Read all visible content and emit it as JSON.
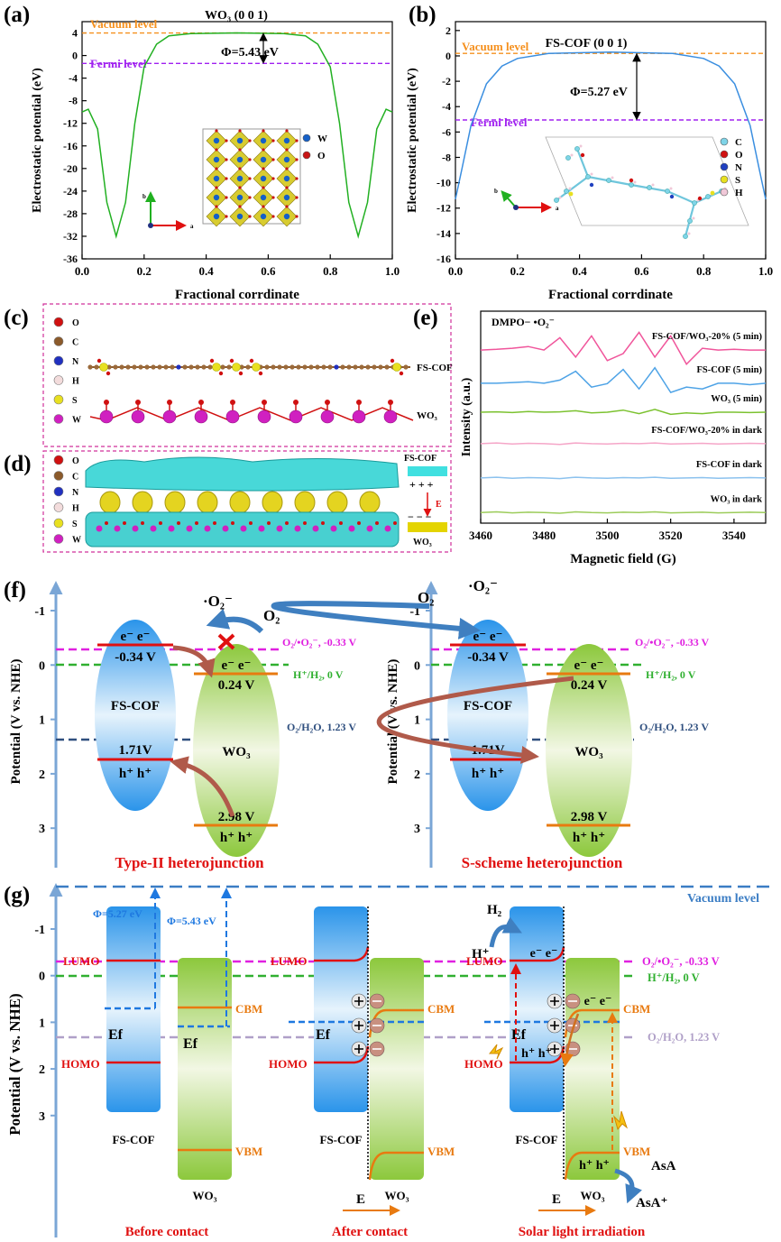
{
  "panel_labels": [
    "(a)",
    "(b)",
    "(c)",
    "(d)",
    "(e)",
    "(f)",
    "(g)"
  ],
  "chart_data": [
    {
      "type": "line",
      "title": "WO₃ (0 0 1)",
      "annotations": [
        "Φ=5.43 eV"
      ],
      "x_label": "Fractional corrdinate",
      "y_label": "Electrostatic potential (eV)",
      "x": [
        0,
        0.02,
        0.05,
        0.08,
        0.11,
        0.14,
        0.17,
        0.2,
        0.24,
        0.28,
        0.35,
        0.5,
        0.65,
        0.72,
        0.76,
        0.8,
        0.83,
        0.86,
        0.89,
        0.92,
        0.95,
        0.98,
        1.0
      ],
      "series": [
        {
          "color": "#22b022",
          "values": [
            -10,
            -9.5,
            -13,
            -26,
            -32,
            -26,
            -12,
            -2,
            2,
            3.5,
            3.9,
            4,
            3.9,
            3.5,
            2,
            -2,
            -12,
            -26,
            -32,
            -26,
            -13,
            -9.5,
            -10
          ]
        }
      ],
      "reference_lines": [
        {
          "label": "Vacuum level",
          "value": 4,
          "color": "#f5901e"
        },
        {
          "label": "Fermi level",
          "value": -1.4,
          "color": "#a020f0"
        }
      ],
      "xlim": [
        0,
        1
      ],
      "ylim": [
        -36,
        6
      ],
      "xticks": [
        {
          "value": 0,
          "label": "0.0"
        },
        0.2,
        0.4,
        0.6,
        0.8,
        {
          "value": 1,
          "label": "1.0"
        }
      ],
      "yticks": [
        4,
        0,
        -4,
        -8,
        -12,
        -16,
        -20,
        -24,
        -28,
        -32,
        -36
      ],
      "inset_legend": [
        "W",
        "O"
      ],
      "inset_axes": [
        "b",
        "a"
      ]
    },
    {
      "type": "line",
      "title": "FS-COF (0 0 1)",
      "annotations": [
        "Φ=5.27 eV"
      ],
      "x_label": "Fractional corrdinate",
      "y_label": "Electrostatic potential (eV)",
      "x": [
        0,
        0.02,
        0.05,
        0.1,
        0.15,
        0.2,
        0.3,
        0.5,
        0.7,
        0.8,
        0.85,
        0.9,
        0.95,
        0.98,
        1.0
      ],
      "series": [
        {
          "color": "#3a8ee0",
          "values": [
            -11.3,
            -9,
            -5.5,
            -2.2,
            -0.8,
            -0.2,
            0.2,
            0.3,
            0.2,
            -0.2,
            -0.8,
            -2.2,
            -5.5,
            -9,
            -11.3
          ]
        }
      ],
      "reference_lines": [
        {
          "label": "Vacuum level",
          "value": 0.2,
          "color": "#f5901e"
        },
        {
          "label": "Fermi level",
          "value": -5.05,
          "color": "#a020f0"
        }
      ],
      "xlim": [
        0,
        1
      ],
      "ylim": [
        -16,
        2.7
      ],
      "xticks": [
        {
          "value": 0,
          "label": "0.0"
        },
        0.2,
        0.4,
        0.6,
        0.8,
        {
          "value": 1,
          "label": "1.0"
        }
      ],
      "yticks": [
        2,
        0,
        -2,
        -4,
        -6,
        -8,
        -10,
        -12,
        -14,
        -16
      ],
      "inset_legend": [
        "C",
        "O",
        "N",
        "S",
        "H"
      ],
      "inset_axes": [
        "b",
        "a"
      ]
    },
    {
      "type": "line",
      "annotations": [
        "DMPO− •O₂⁻"
      ],
      "x_label": "Magnetic field (G)",
      "y_label": "Intensity (a.u.)",
      "x": [
        3460,
        3465,
        3470,
        3475,
        3480,
        3485,
        3490,
        3495,
        3500,
        3505,
        3510,
        3515,
        3520,
        3525,
        3530,
        3535,
        3540,
        3545,
        3550
      ],
      "series": [
        {
          "name": "FS-COF/WO₃-20% (5 min)",
          "color": "#f0559b",
          "values": [
            4.9,
            4.92,
            4.95,
            5.0,
            4.9,
            5.25,
            4.7,
            5.3,
            4.6,
            4.8,
            5.4,
            4.7,
            5.3,
            4.5,
            4.95,
            4.9,
            4.92,
            4.9,
            4.9
          ]
        },
        {
          "name": "FS-COF (5 min)",
          "color": "#4ea3e6",
          "values": [
            3.96,
            3.96,
            3.98,
            4.0,
            3.96,
            4.05,
            4.3,
            3.85,
            3.95,
            4.35,
            3.8,
            4.4,
            3.7,
            3.85,
            3.8,
            3.96,
            3.96,
            3.92,
            3.96
          ]
        },
        {
          "name": "WO₃ (5 min)",
          "color": "#7cc230",
          "values": [
            3.14,
            3.15,
            3.13,
            3.16,
            3.14,
            3.15,
            3.18,
            3.12,
            3.14,
            3.2,
            3.1,
            3.22,
            3.08,
            3.12,
            3.1,
            3.14,
            3.14,
            3.13,
            3.14
          ]
        },
        {
          "name": "FS-COF/WO₃-20% in dark",
          "color": "#f5a6c8",
          "values": [
            2.25,
            2.27,
            2.24,
            2.26,
            2.25,
            2.23,
            2.27,
            2.25,
            2.24,
            2.26,
            2.25,
            2.27,
            2.24,
            2.25,
            2.26,
            2.24,
            2.25,
            2.26,
            2.25
          ]
        },
        {
          "name": "FS-COF in dark",
          "color": "#8cc2ee",
          "values": [
            1.28,
            1.3,
            1.27,
            1.29,
            1.28,
            1.26,
            1.3,
            1.28,
            1.27,
            1.29,
            1.28,
            1.3,
            1.27,
            1.28,
            1.29,
            1.27,
            1.28,
            1.29,
            1.28
          ]
        },
        {
          "name": "WO₃ in dark",
          "color": "#9ccc5a",
          "values": [
            0.3,
            0.32,
            0.29,
            0.31,
            0.3,
            0.28,
            0.32,
            0.3,
            0.29,
            0.31,
            0.3,
            0.32,
            0.29,
            0.3,
            0.31,
            0.29,
            0.3,
            0.31,
            0.3
          ]
        }
      ],
      "xlim": [
        3460,
        3550
      ],
      "ylim": [
        0,
        6
      ],
      "xticks": [
        3460,
        3480,
        3500,
        3520,
        3540
      ]
    }
  ],
  "panel_c": {
    "legend": [
      "O",
      "C",
      "N",
      "H",
      "S",
      "W"
    ],
    "labels": [
      "FS-COF",
      "WO₃"
    ]
  },
  "panel_d": {
    "legend": [
      "O",
      "C",
      "N",
      "H",
      "S",
      "W"
    ],
    "labels": [
      "FS-COF",
      "+ + +",
      "E",
      "−  −  −",
      "WO₃"
    ]
  },
  "panel_f": {
    "y_label": "Potential (V vs. NHE)",
    "yticks": [
      "-1",
      "0",
      "1",
      "2",
      "3"
    ],
    "redox": [
      "O₂/•O₂⁻, -0.33 V",
      "H⁺/H₂, 0 V",
      "O₂/H₂O, 1.23 V"
    ],
    "diagrams": [
      {
        "caption": "Type-II heterojunction",
        "cof": "FS-COF",
        "wo3": "WO₃",
        "cof_cb": "-0.34 V",
        "cof_vb": "1.71V",
        "wo3_cb": "0.24 V",
        "wo3_vb": "2.98 V",
        "electrons": "e⁻ e⁻",
        "holes": "h⁺ h⁺",
        "o2": "O₂",
        "superoxide": "·O₂⁻"
      },
      {
        "caption": "S-scheme heterojunction",
        "cof": "FS-COF",
        "wo3": "WO₃",
        "cof_cb": "-0.34 V",
        "cof_vb": "1.71V",
        "wo3_cb": "0.24 V",
        "wo3_vb": "2.98 V",
        "electrons": "e⁻ e⁻",
        "holes": "h⁺ h⁺",
        "o2": "O₂",
        "superoxide": "·O₂⁻"
      }
    ]
  },
  "panel_g": {
    "y_label": "Potential (V vs. NHE)",
    "yticks": [
      "-1",
      "0",
      "1",
      "2",
      "3"
    ],
    "vacuum_level": "Vacuum level",
    "phi": [
      "Φ=5.27 eV",
      "Φ=5.43 eV"
    ],
    "redox": [
      "O₂/•O₂⁻, -0.33 V",
      "H⁺/H₂, 0 V",
      "O₂/H₂O, 1.23 V"
    ],
    "stages": [
      {
        "caption": "Before contact",
        "cof": "FS-COF",
        "wo3": "WO₃",
        "lumo": "LUMO",
        "homo": "HOMO",
        "cbm": "CBM",
        "vbm": "VBM",
        "ef": "Ef"
      },
      {
        "caption": "After contact",
        "cof": "FS-COF",
        "wo3": "WO₃",
        "lumo": "LUMO",
        "homo": "HOMO",
        "cbm": "CBM",
        "vbm": "VBM",
        "ef": "Ef",
        "field": "E"
      },
      {
        "caption": "Solar light irradiation",
        "cof": "FS-COF",
        "wo3": "WO₃",
        "lumo": "LUMO",
        "homo": "HOMO",
        "cbm": "CBM",
        "vbm": "VBM",
        "ef": "Ef",
        "field": "E",
        "electrons": "e⁻ e⁻",
        "holes": "h⁺ h⁺",
        "h2": "H₂",
        "hplus": "H⁺",
        "asa": "AsA",
        "asa_plus": "AsA⁺"
      }
    ]
  }
}
